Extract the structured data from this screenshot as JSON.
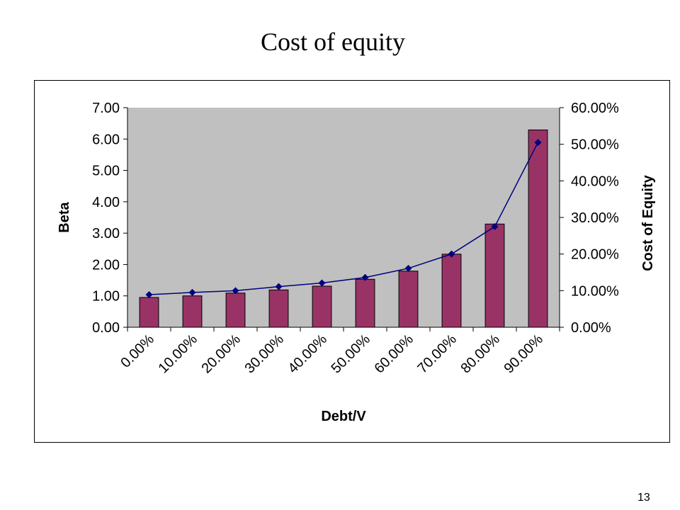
{
  "slide": {
    "title": "Cost of equity",
    "page_number": "13"
  },
  "chart_data": {
    "type": "bar",
    "title": "",
    "xlabel": "Debt/V",
    "ylabel": "Beta",
    "y2label": "Cost of Equity",
    "categories": [
      "0.00%",
      "10.00%",
      "20.00%",
      "30.00%",
      "40.00%",
      "50.00%",
      "60.00%",
      "70.00%",
      "80.00%",
      "90.00%"
    ],
    "ylim": [
      0,
      7
    ],
    "y2lim": [
      0,
      0.6
    ],
    "yticks": [
      "0.00",
      "1.00",
      "2.00",
      "3.00",
      "4.00",
      "5.00",
      "6.00",
      "7.00"
    ],
    "y2ticks": [
      "0.00%",
      "10.00%",
      "20.00%",
      "30.00%",
      "40.00%",
      "50.00%",
      "60.00%"
    ],
    "grid": false,
    "legend": "none",
    "plot_background": "#C0C0C0",
    "series": [
      {
        "type": "bar",
        "axis": "left",
        "color": "#993366",
        "values": [
          0.95,
          1.0,
          1.09,
          1.19,
          1.31,
          1.53,
          1.79,
          2.33,
          3.29,
          6.29
        ]
      },
      {
        "type": "line",
        "axis": "right",
        "color": "#000080",
        "values": [
          0.089,
          0.095,
          0.1,
          0.111,
          0.121,
          0.136,
          0.161,
          0.2,
          0.275,
          0.505
        ]
      }
    ]
  }
}
